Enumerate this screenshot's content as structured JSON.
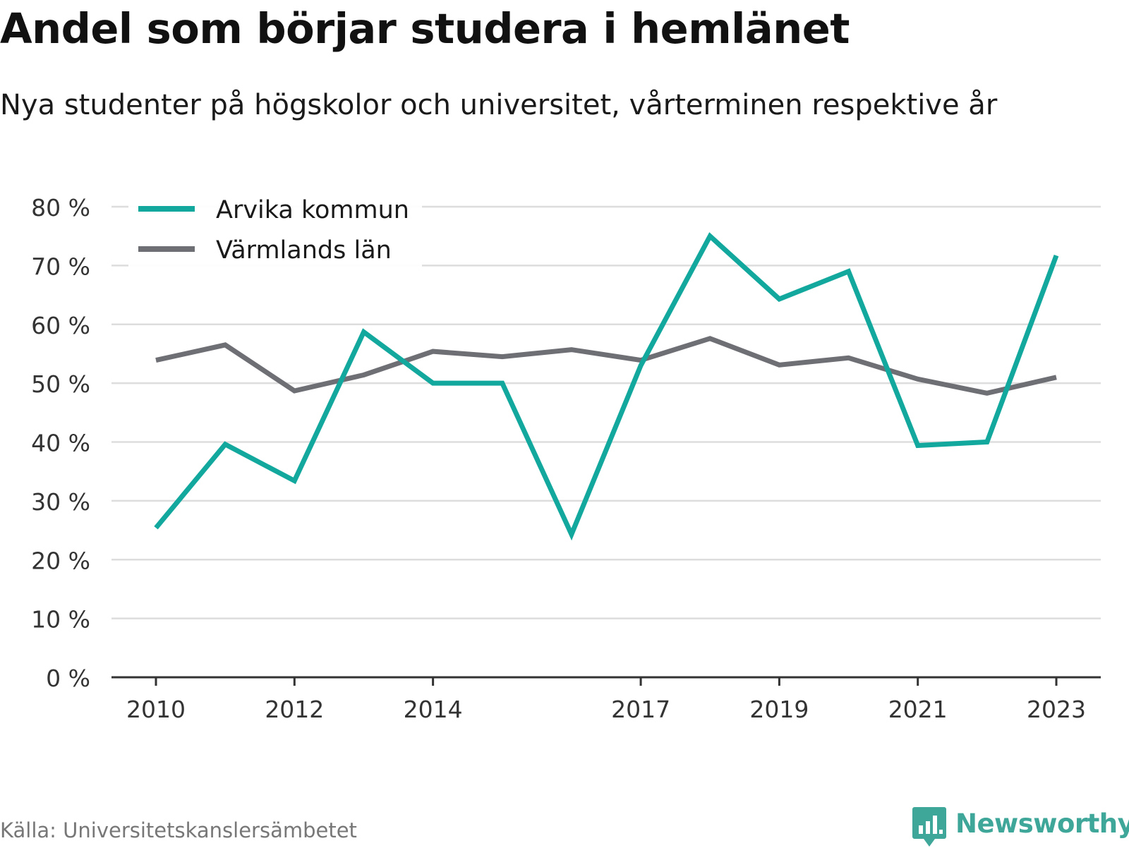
{
  "title": "Andel som börjar studera i hemlänet",
  "subtitle": "Nya studenter på högskolor och universitet, vårterminen respektive år",
  "source": "Källa: Universitetskanslersämbetet",
  "brand": {
    "name": "Newsworthy",
    "icon": "chart-speech-bubble-icon",
    "color": "#3fa69a"
  },
  "colors": {
    "arvika": "#13a89e",
    "varmland": "#6e6e75",
    "grid": "#dddddd",
    "axis": "#333333"
  },
  "chart_data": {
    "type": "line",
    "title": "Andel som börjar studera i hemlänet",
    "subtitle": "Nya studenter på högskolor och universitet, vårterminen respektive år",
    "x": [
      2010,
      2011,
      2012,
      2013,
      2014,
      2015,
      2016,
      2017,
      2018,
      2019,
      2020,
      2021,
      2022,
      2023
    ],
    "x_tick_values": [
      2010,
      2012,
      2014,
      2017,
      2019,
      2021,
      2023
    ],
    "x_tick_labels": [
      "2010",
      "2012",
      "2014",
      "2017",
      "2019",
      "2021",
      "2023"
    ],
    "y_tick_values": [
      0,
      10,
      20,
      30,
      40,
      50,
      60,
      70,
      80
    ],
    "y_tick_labels": [
      "0 %",
      "10 %",
      "20 %",
      "30 %",
      "40 %",
      "50 %",
      "60 %",
      "70 %",
      "80 %"
    ],
    "ylim": [
      0,
      80
    ],
    "xlabel": "",
    "ylabel": "",
    "grid": "horizontal",
    "legend_position": "top-left",
    "series": [
      {
        "name": "Arvika kommun",
        "color": "#13a89e",
        "values": [
          25.4,
          39.6,
          33.4,
          58.7,
          50.0,
          50.0,
          24.3,
          53.0,
          75.0,
          64.3,
          69.0,
          39.4,
          40.0,
          71.7
        ]
      },
      {
        "name": "Värmlands län",
        "color": "#6e6e75",
        "values": [
          53.9,
          56.5,
          48.7,
          51.4,
          55.4,
          54.5,
          55.7,
          53.9,
          57.6,
          53.1,
          54.3,
          50.7,
          48.3,
          51.0
        ]
      }
    ]
  }
}
